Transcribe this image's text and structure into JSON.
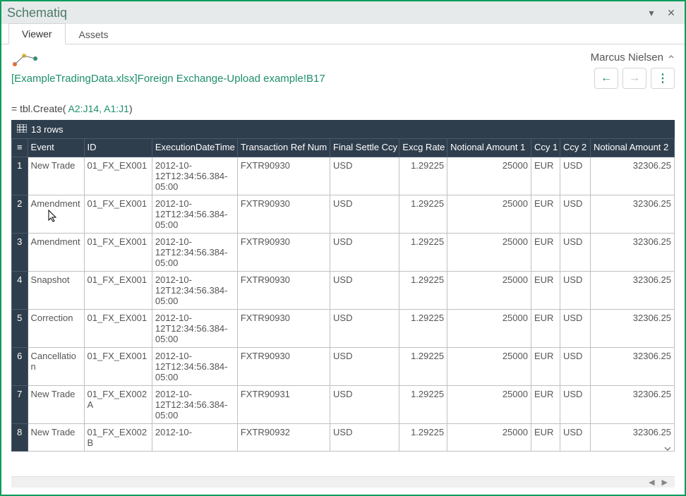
{
  "window": {
    "title": "Schematiq"
  },
  "tabs": [
    {
      "label": "Viewer",
      "active": true
    },
    {
      "label": "Assets",
      "active": false
    }
  ],
  "user": {
    "name": "Marcus Nielsen"
  },
  "cell_ref": "[ExampleTradingData.xlsx]Foreign Exchange-Upload example!B17",
  "formula": {
    "prefix": "= ",
    "fn": "tbl.Create(",
    "args": " A2:J14, A1:J1",
    "suffix": ")"
  },
  "table": {
    "row_count_label": "13 rows",
    "columns": [
      "Event",
      "ID",
      "ExecutionDateTime",
      "Transaction Ref Num",
      "Final Settle Ccy",
      "Excg Rate",
      "Notional Amount 1",
      "Ccy 1",
      "Ccy 2",
      "Notional Amount 2"
    ],
    "rows": [
      {
        "n": "1",
        "event": "New Trade",
        "id": "01_FX_EX001",
        "exec": "2012-10-12T12:34:56.384-05:00",
        "ref": "FXTR90930",
        "ccy": "USD",
        "rate": "1.29225",
        "not1": "25000",
        "ccy1": "EUR",
        "ccy2": "USD",
        "not2": "32306.25"
      },
      {
        "n": "2",
        "event": "Amendment",
        "id": "01_FX_EX001",
        "exec": "2012-10-12T12:34:56.384-05:00",
        "ref": "FXTR90930",
        "ccy": "USD",
        "rate": "1.29225",
        "not1": "25000",
        "ccy1": "EUR",
        "ccy2": "USD",
        "not2": "32306.25"
      },
      {
        "n": "3",
        "event": "Amendment",
        "id": "01_FX_EX001",
        "exec": "2012-10-12T12:34:56.384-05:00",
        "ref": "FXTR90930",
        "ccy": "USD",
        "rate": "1.29225",
        "not1": "25000",
        "ccy1": "EUR",
        "ccy2": "USD",
        "not2": "32306.25"
      },
      {
        "n": "4",
        "event": "Snapshot",
        "id": "01_FX_EX001",
        "exec": "2012-10-12T12:34:56.384-05:00",
        "ref": "FXTR90930",
        "ccy": "USD",
        "rate": "1.29225",
        "not1": "25000",
        "ccy1": "EUR",
        "ccy2": "USD",
        "not2": "32306.25"
      },
      {
        "n": "5",
        "event": "Correction",
        "id": "01_FX_EX001",
        "exec": "2012-10-12T12:34:56.384-05:00",
        "ref": "FXTR90930",
        "ccy": "USD",
        "rate": "1.29225",
        "not1": "25000",
        "ccy1": "EUR",
        "ccy2": "USD",
        "not2": "32306.25"
      },
      {
        "n": "6",
        "event": "Cancellation",
        "id": "01_FX_EX001",
        "exec": "2012-10-12T12:34:56.384-05:00",
        "ref": "FXTR90930",
        "ccy": "USD",
        "rate": "1.29225",
        "not1": "25000",
        "ccy1": "EUR",
        "ccy2": "USD",
        "not2": "32306.25"
      },
      {
        "n": "7",
        "event": "New Trade",
        "id": "01_FX_EX002A",
        "exec": "2012-10-12T12:34:56.384-05:00",
        "ref": "FXTR90931",
        "ccy": "USD",
        "rate": "1.29225",
        "not1": "25000",
        "ccy1": "EUR",
        "ccy2": "USD",
        "not2": "32306.25"
      },
      {
        "n": "8",
        "event": "New Trade",
        "id": "01_FX_EX002B",
        "exec": "2012-10-",
        "ref": "FXTR90932",
        "ccy": "USD",
        "rate": "1.29225",
        "not1": "25000",
        "ccy1": "EUR",
        "ccy2": "USD",
        "not2": "32306.25",
        "dim": true
      }
    ]
  },
  "colors": {
    "border_accent": "#0a9c5e",
    "titlebar_bg": "#e7eaea",
    "title_text": "#4c7a6a",
    "link_green": "#1e8e6d",
    "table_header_bg": "#2f3e4d",
    "grid_border": "#c0c0c0"
  }
}
